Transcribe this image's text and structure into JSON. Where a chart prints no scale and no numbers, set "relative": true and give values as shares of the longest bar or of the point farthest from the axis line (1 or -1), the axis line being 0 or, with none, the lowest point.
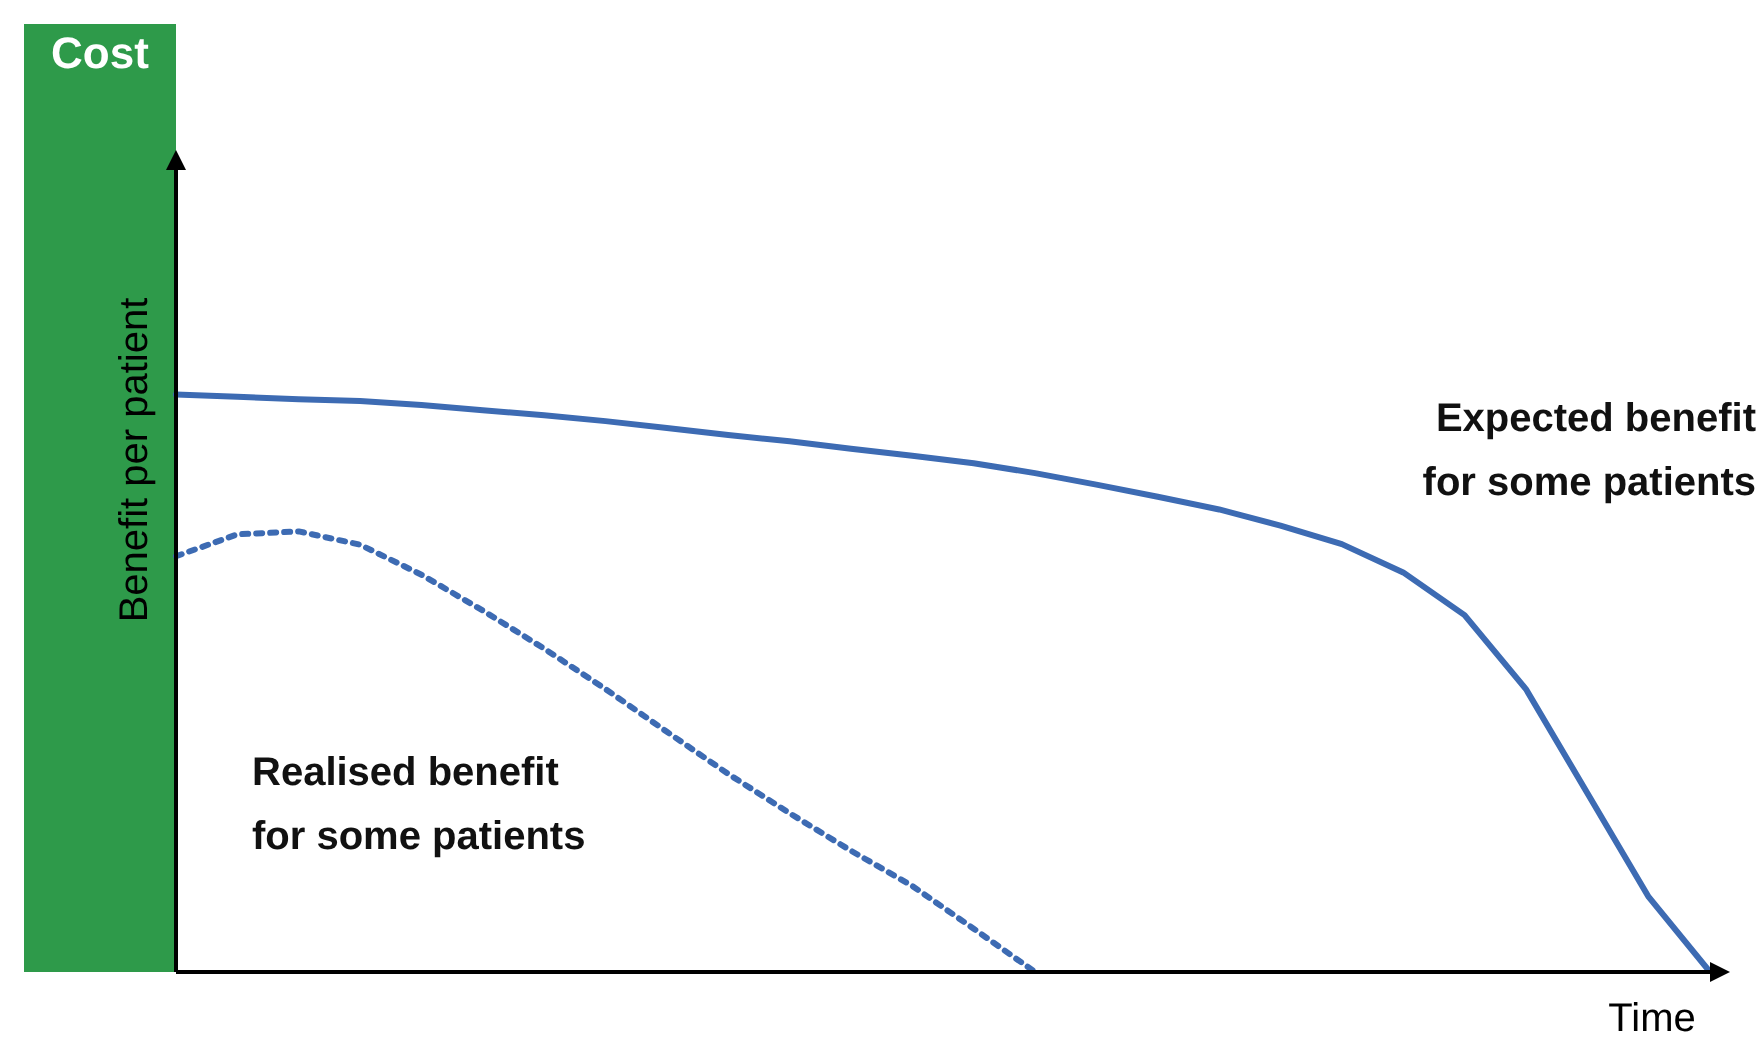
{
  "chart_data": {
    "type": "line",
    "relative": true,
    "xlabel": "Time",
    "ylabel": "Benefit per patient",
    "annotations": [
      "Cost"
    ],
    "legend": false,
    "grid": false,
    "tick_labels": false,
    "marker": "none",
    "categories": [
      null,
      null,
      null,
      null,
      null,
      null,
      null,
      null,
      null,
      null,
      null,
      null,
      null,
      null,
      null,
      null,
      null,
      null,
      null,
      null,
      null,
      null,
      null,
      null,
      null,
      null
    ],
    "series": [
      {
        "name": "Expected benefit for some patients",
        "color": "#3d6bb3",
        "line_style": "solid",
        "values": [
          1.0,
          0.996,
          0.992,
          0.989,
          0.982,
          0.973,
          0.964,
          0.954,
          0.942,
          0.93,
          0.919,
          0.906,
          0.894,
          0.881,
          0.864,
          0.844,
          0.823,
          0.801,
          0.773,
          0.741,
          0.692,
          0.618,
          0.49,
          0.31,
          0.13,
          0
        ]
      },
      {
        "name": "Realised benefit for some patients",
        "color": "#3d6bb3",
        "line_style": "dotted",
        "values": [
          0.72,
          0.758,
          0.763,
          0.74,
          0.688,
          0.626,
          0.56,
          0.49,
          0.416,
          0.343,
          0.275,
          0.21,
          0.149,
          0.075,
          0,
          null,
          null,
          null,
          null,
          null,
          null,
          null,
          null,
          null,
          null,
          null
        ]
      }
    ]
  }
}
